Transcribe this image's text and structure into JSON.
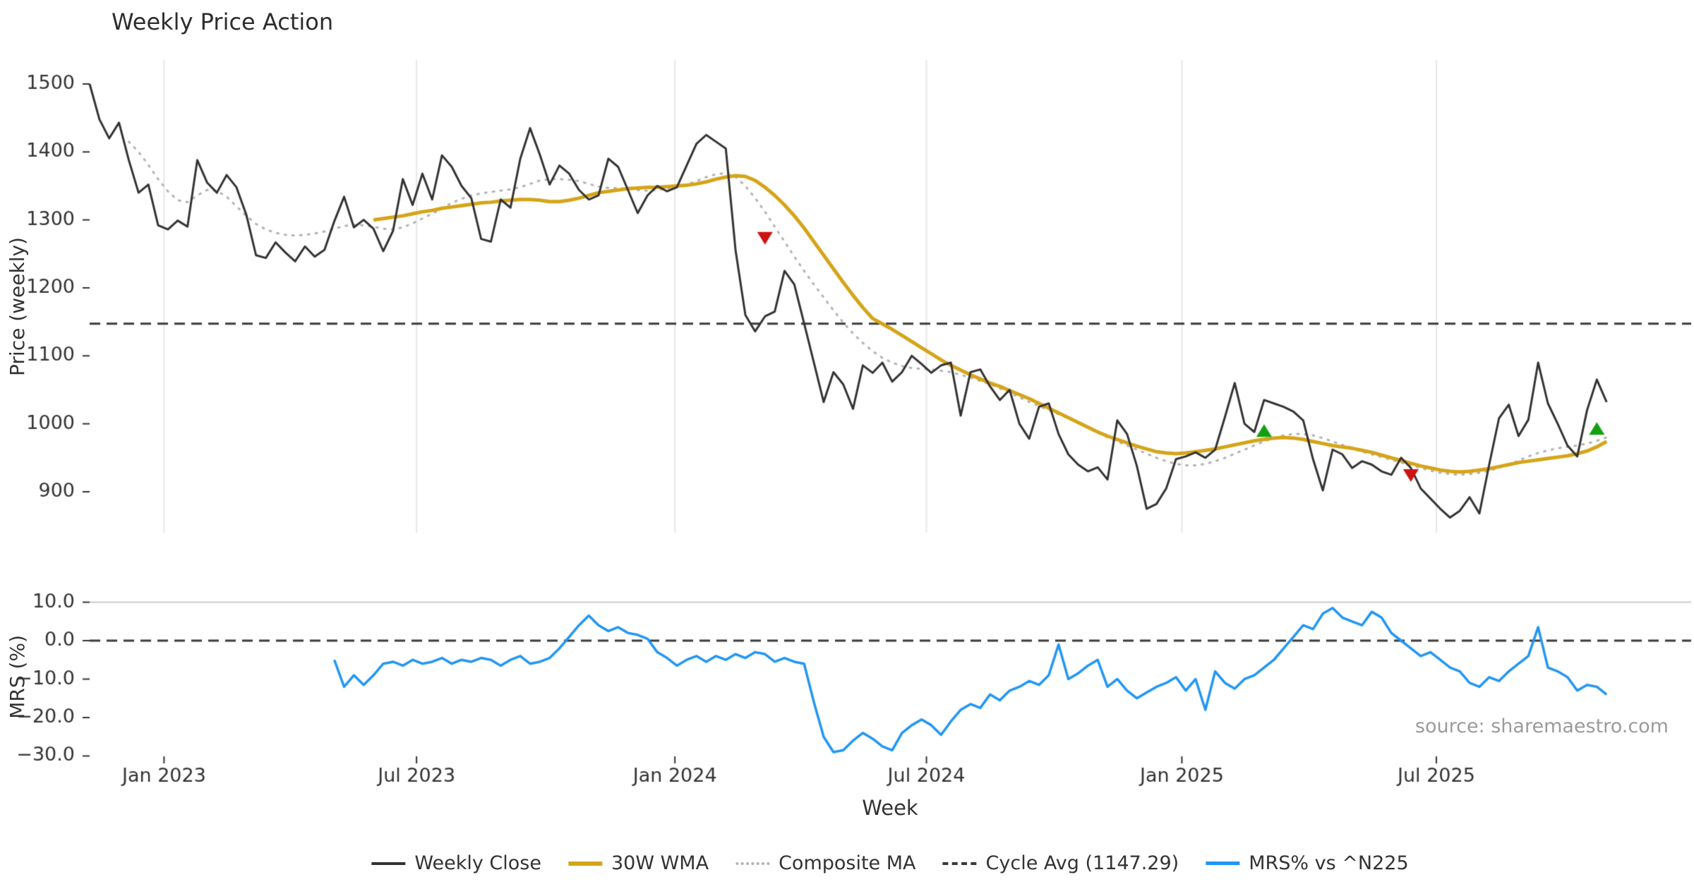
{
  "title": "Weekly Price Action",
  "source": "source: sharemaestro.com",
  "axes": {
    "price_label": "Price (weekly)",
    "mrs_label": "MRS (%)",
    "x_label": "Week"
  },
  "colors": {
    "close": "#333333",
    "wma": "#d6a418",
    "composite": "#b3b3b3",
    "dashed": "#3a3a3a",
    "mrs": "#2196f3",
    "buy": "#13a013",
    "sell": "#cf1212",
    "grid": "#e7e7e7",
    "grid_dark": "#cccccc",
    "text": "#333333",
    "muted": "#9b9b9b"
  },
  "legend": [
    {
      "label": "Weekly Close",
      "style": "solid",
      "weight": 4,
      "color": "#333333"
    },
    {
      "label": "30W WMA",
      "style": "solid",
      "weight": 6,
      "color": "#d6a418"
    },
    {
      "label": "Composite MA",
      "style": "dotted",
      "weight": 4,
      "color": "#b3b3b3"
    },
    {
      "label": "Cycle Avg (1147.29)",
      "style": "dashed",
      "weight": 4,
      "color": "#3a3a3a"
    },
    {
      "label": "MRS% vs ^N225",
      "style": "solid",
      "weight": 5,
      "color": "#2196f3"
    }
  ],
  "chart_data": {
    "type": "line",
    "title": "Weekly Price Action",
    "xlabel": "Week",
    "panels": [
      {
        "name": "price",
        "ylabel": "Price (weekly)",
        "ylim": [
          840,
          1530
        ]
      },
      {
        "name": "mrs",
        "ylabel": "MRS (%)",
        "ylim": [
          -32,
          12
        ]
      }
    ],
    "cycle_avg": 1147.29,
    "x_axis": {
      "ticks": [
        {
          "label": "Jan 2023",
          "week": 7.6
        },
        {
          "label": "Jul 2023",
          "week": 33.4
        },
        {
          "label": "Jan 2024",
          "week": 59.8
        },
        {
          "label": "Jul 2024",
          "week": 85.5
        },
        {
          "label": "Jan 2025",
          "week": 111.6
        },
        {
          "label": "Jul 2025",
          "week": 137.6
        }
      ]
    },
    "price_axis": {
      "ticks": [
        {
          "label": "1500",
          "value": 1500
        },
        {
          "label": "1400",
          "value": 1400
        },
        {
          "label": "1300",
          "value": 1300
        },
        {
          "label": "1200",
          "value": 1200
        },
        {
          "label": "1100",
          "value": 1100
        },
        {
          "label": "1000",
          "value": 1000
        },
        {
          "label": "900",
          "value": 900
        }
      ]
    },
    "mrs_axis": {
      "ticks": [
        {
          "label": "10.0",
          "value": 10
        },
        {
          "label": "0.0",
          "value": 0
        },
        {
          "label": "−10.0",
          "value": -10
        },
        {
          "label": "−20.0",
          "value": -20
        },
        {
          "label": "−30.0",
          "value": -30
        }
      ]
    },
    "series": {
      "weekly_close": {
        "name": "Weekly Close",
        "start_week": 0,
        "values": [
          1500,
          1448,
          1420,
          1443,
          1388,
          1340,
          1352,
          1292,
          1286,
          1299,
          1290,
          1388,
          1355,
          1340,
          1366,
          1348,
          1308,
          1248,
          1244,
          1267,
          1252,
          1239,
          1261,
          1246,
          1256,
          1298,
          1334,
          1289,
          1300,
          1287,
          1254,
          1284,
          1360,
          1322,
          1368,
          1330,
          1395,
          1378,
          1350,
          1332,
          1272,
          1268,
          1330,
          1318,
          1390,
          1435,
          1396,
          1352,
          1380,
          1368,
          1344,
          1330,
          1336,
          1390,
          1378,
          1344,
          1310,
          1336,
          1350,
          1342,
          1348,
          1380,
          1412,
          1425,
          1415,
          1405,
          1255,
          1160,
          1136,
          1158,
          1165,
          1225,
          1205,
          1148,
          1090,
          1032,
          1076,
          1058,
          1022,
          1086,
          1075,
          1090,
          1062,
          1076,
          1100,
          1088,
          1075,
          1086,
          1090,
          1012,
          1076,
          1080,
          1055,
          1035,
          1050,
          1000,
          978,
          1025,
          1030,
          985,
          955,
          940,
          930,
          936,
          918,
          1005,
          985,
          938,
          875,
          882,
          905,
          948,
          952,
          958,
          950,
          962,
          1010,
          1060,
          1000,
          988,
          1035,
          1030,
          1025,
          1018,
          1005,
          948,
          902,
          962,
          955,
          935,
          945,
          940,
          930,
          925,
          950,
          935,
          905,
          890,
          875,
          862,
          872,
          892,
          868,
          940,
          1008,
          1028,
          982,
          1006,
          1090,
          1030,
          1000,
          968,
          952,
          1020,
          1065,
          1032
        ]
      },
      "wma_30w": {
        "name": "30W WMA",
        "start_week": 29,
        "values": [
          1300,
          1302,
          1304,
          1306,
          1309,
          1312,
          1314,
          1317,
          1319,
          1321,
          1323,
          1325,
          1326,
          1328,
          1329,
          1330,
          1330,
          1329,
          1327,
          1327,
          1329,
          1332,
          1336,
          1340,
          1342,
          1344,
          1346,
          1347,
          1348,
          1348,
          1349,
          1350,
          1351,
          1353,
          1356,
          1360,
          1363,
          1365,
          1364,
          1358,
          1348,
          1336,
          1322,
          1306,
          1288,
          1268,
          1248,
          1228,
          1208,
          1189,
          1171,
          1155,
          1147,
          1139,
          1130,
          1121,
          1112,
          1103,
          1094,
          1086,
          1079,
          1072,
          1066,
          1060,
          1055,
          1049,
          1043,
          1037,
          1030,
          1023,
          1016,
          1009,
          1002,
          995,
          988,
          982,
          977,
          972,
          967,
          963,
          959,
          957,
          956,
          957,
          959,
          961,
          963,
          966,
          969,
          972,
          975,
          977,
          979,
          980,
          979,
          977,
          974,
          971,
          968,
          966,
          964,
          961,
          958,
          954,
          950,
          946,
          942,
          938,
          935,
          932,
          930,
          929,
          930,
          932,
          934,
          937,
          940,
          943,
          945,
          947,
          949,
          951,
          953,
          956,
          960,
          966,
          974
        ]
      },
      "composite_ma": {
        "name": "Composite MA",
        "start_week": 4,
        "values": [
          1415,
          1400,
          1381,
          1360,
          1342,
          1329,
          1326,
          1336,
          1344,
          1343,
          1334,
          1320,
          1306,
          1294,
          1286,
          1281,
          1278,
          1277,
          1278,
          1280,
          1283,
          1287,
          1291,
          1293,
          1292,
          1290,
          1287,
          1286,
          1289,
          1295,
          1302,
          1309,
          1317,
          1325,
          1331,
          1336,
          1339,
          1341,
          1343,
          1345,
          1348,
          1353,
          1358,
          1360,
          1360,
          1359,
          1357,
          1353,
          1349,
          1347,
          1347,
          1346,
          1344,
          1343,
          1344,
          1346,
          1348,
          1352,
          1357,
          1363,
          1367,
          1369,
          1363,
          1350,
          1332,
          1312,
          1290,
          1268,
          1246,
          1225,
          1205,
          1186,
          1167,
          1149,
          1133,
          1119,
          1107,
          1097,
          1090,
          1085,
          1082,
          1081,
          1080,
          1078,
          1076,
          1072,
          1068,
          1063,
          1058,
          1052,
          1046,
          1039,
          1032,
          1026,
          1020,
          1014,
          1008,
          1001,
          994,
          987,
          980,
          974,
          968,
          962,
          956,
          950,
          945,
          941,
          939,
          939,
          941,
          945,
          950,
          956,
          962,
          968,
          974,
          979,
          983,
          985,
          985,
          983,
          979,
          974,
          969,
          964,
          959,
          955,
          951,
          947,
          943,
          939,
          935,
          931,
          928,
          926,
          925,
          926,
          928,
          931,
          935,
          940,
          946,
          952,
          957,
          961,
          964,
          966,
          968,
          971,
          975,
          980
        ]
      },
      "mrs": {
        "name": "MRS% vs ^N225",
        "start_week": 25,
        "values": [
          -5,
          -12,
          -9,
          -11.5,
          -9,
          -6,
          -5.5,
          -6.5,
          -5,
          -6,
          -5.5,
          -4.5,
          -6,
          -5,
          -5.5,
          -4.5,
          -5,
          -6.5,
          -5,
          -4,
          -6,
          -5.5,
          -4.5,
          -2,
          1,
          4,
          6.5,
          4,
          2.5,
          3.5,
          2,
          1.5,
          0.5,
          -3,
          -4.5,
          -6.5,
          -5,
          -4,
          -5.5,
          -4,
          -5,
          -3.5,
          -4.5,
          -3,
          -3.5,
          -5.5,
          -4.5,
          -5.5,
          -6,
          -16,
          -25,
          -29,
          -28.5,
          -26,
          -24,
          -25.5,
          -27.5,
          -28.5,
          -24,
          -22,
          -20.5,
          -22,
          -24.5,
          -21,
          -18,
          -16.5,
          -17.5,
          -14,
          -15.5,
          -13,
          -12,
          -10.5,
          -11.5,
          -9,
          -1,
          -10,
          -8.5,
          -6.5,
          -5,
          -12,
          -10,
          -13,
          -15,
          -13.5,
          -12,
          -11,
          -9.5,
          -13,
          -10,
          -18,
          -8,
          -11,
          -12.5,
          -10,
          -9,
          -7,
          -5,
          -2,
          1,
          4,
          3,
          7,
          8.5,
          6,
          5,
          4,
          7.5,
          6,
          2,
          0,
          -2,
          -4,
          -3,
          -5,
          -7,
          -8,
          -11,
          -12,
          -9.5,
          -10.5,
          -8,
          -6,
          -4,
          3.5,
          -7,
          -8,
          -9.5,
          -13,
          -11.5,
          -12,
          -14
        ]
      }
    },
    "markers": [
      {
        "type": "sell",
        "week": 69,
        "price": 1274
      },
      {
        "type": "buy",
        "week": 120,
        "price": 989
      },
      {
        "type": "sell",
        "week": 135,
        "price": 925
      },
      {
        "type": "buy",
        "week": 154,
        "price": 992
      }
    ],
    "legend_position": "bottom-center",
    "grid": "vertical-light-top-panel"
  }
}
